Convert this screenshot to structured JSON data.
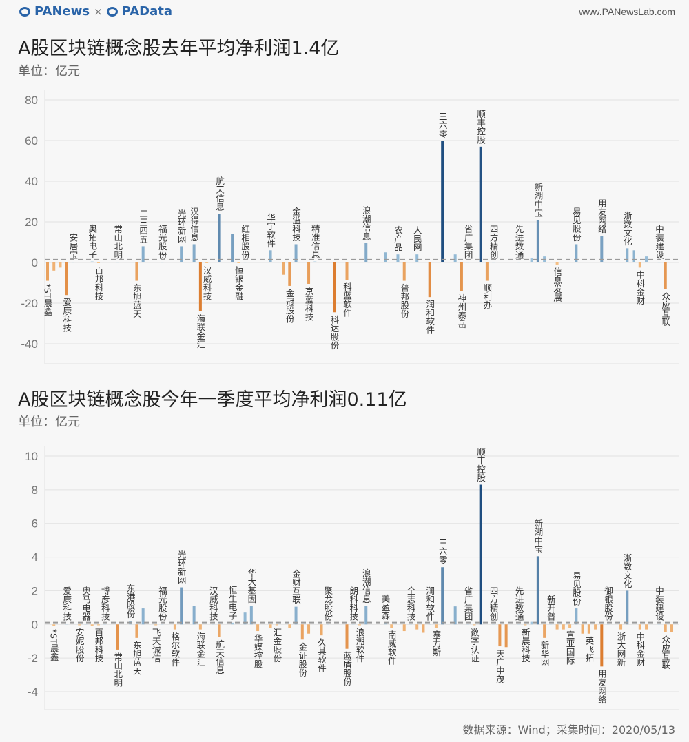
{
  "header": {
    "logo_left": "PANews",
    "logo_sep": "×",
    "logo_right": "PAData",
    "site": "www.PANewsLab.com"
  },
  "footer": {
    "source": "数据来源：Wind；采集时间：2020/05/13"
  },
  "colors": {
    "pos_light": "#a9cde4",
    "pos_dark": "#1f4e80",
    "neg_light": "#f6c68e",
    "neg_dark": "#dc7d30",
    "avg_line": "#9a9a9a",
    "grid": "#e2e2e2"
  },
  "chart_data": [
    {
      "type": "bar",
      "title": "A股区块链概念股去年平均净利润1.4亿",
      "unit": "单位：亿元",
      "average": 1.4,
      "ylim": [
        -50,
        85
      ],
      "yticks": [
        80,
        60,
        40,
        20,
        0,
        -20,
        -40
      ],
      "grid": true,
      "bars": [
        [
          "*ST晨鑫",
          -9
        ],
        [
          "",
          -4
        ],
        [
          "",
          -2.5
        ],
        [
          "爱康科技",
          -16
        ],
        [
          "安居宝",
          0.3
        ],
        [
          "",
          null
        ],
        [
          "",
          null
        ],
        [
          "奥拓电子",
          0.5
        ],
        [
          "百邦科技",
          -0.3
        ],
        [
          "",
          null
        ],
        [
          "",
          null
        ],
        [
          "常山北明",
          0.3
        ],
        [
          "",
          null
        ],
        [
          "",
          null
        ],
        [
          "东旭蓝天",
          -9
        ],
        [
          "二三四五",
          8
        ],
        [
          "",
          null
        ],
        [
          "",
          null
        ],
        [
          "福光股份",
          0.3
        ],
        [
          "",
          null
        ],
        [
          "",
          null
        ],
        [
          "光环新网",
          8
        ],
        [
          "",
          null
        ],
        [
          "汉得信息",
          9
        ],
        [
          "海联金汇",
          -24
        ],
        [
          "汉威科技",
          -0.3
        ],
        [
          "",
          null
        ],
        [
          "航天信息",
          24
        ],
        [
          "",
          null
        ],
        [
          "",
          14
        ],
        [
          "恒银金融",
          -0.3
        ],
        [
          "红相股份",
          0.3
        ],
        [
          "",
          null
        ],
        [
          "",
          null
        ],
        [
          "",
          null
        ],
        [
          "华宇软件",
          6
        ],
        [
          "",
          null
        ],
        [
          "",
          -6
        ],
        [
          "金冠股份",
          -11.5
        ],
        [
          "金溢科技",
          9
        ],
        [
          "",
          null
        ],
        [
          "京蓝科技",
          -10.5
        ],
        [
          "精准信息",
          0.5
        ],
        [
          "",
          null
        ],
        [
          "",
          null
        ],
        [
          "科达股份",
          -24.5
        ],
        [
          "",
          null
        ],
        [
          "科蓝软件",
          -8.5
        ],
        [
          "",
          null
        ],
        [
          "",
          null
        ],
        [
          "浪潮信息",
          9.5
        ],
        [
          "",
          null
        ],
        [
          "",
          null
        ],
        [
          "",
          5
        ],
        [
          "",
          null
        ],
        [
          "农产品",
          4
        ],
        [
          "普邦股份",
          -9
        ],
        [
          "",
          null
        ],
        [
          "人民网",
          4
        ],
        [
          "",
          null
        ],
        [
          "润和软件",
          -17
        ],
        [
          "",
          null
        ],
        [
          "三六零",
          60
        ],
        [
          "",
          null
        ],
        [
          "",
          4
        ],
        [
          "神州泰岳",
          -14
        ],
        [
          "省广集团",
          0.3
        ],
        [
          "",
          null
        ],
        [
          "顺丰控股",
          57
        ],
        [
          "顺利办",
          -9
        ],
        [
          "四方精创",
          0.3
        ],
        [
          "",
          null
        ],
        [
          "",
          null
        ],
        [
          "",
          null
        ],
        [
          "先进数通",
          0.3
        ],
        [
          "",
          null
        ],
        [
          "",
          2
        ],
        [
          "新湖中宝",
          21
        ],
        [
          "",
          3
        ],
        [
          "",
          null
        ],
        [
          "信息发展",
          -1
        ],
        [
          "",
          null
        ],
        [
          "",
          null
        ],
        [
          "易见股份",
          9
        ],
        [
          "",
          null
        ],
        [
          "",
          null
        ],
        [
          "",
          null
        ],
        [
          "用友网络",
          13
        ],
        [
          "",
          null
        ],
        [
          "",
          null
        ],
        [
          "",
          null
        ],
        [
          "浙数文化",
          7
        ],
        [
          "",
          6
        ],
        [
          "中科金财",
          -2.5
        ],
        [
          "",
          3
        ],
        [
          "",
          null
        ],
        [
          "中装建设",
          0.3
        ],
        [
          "众应互联",
          -13
        ],
        [
          "",
          null
        ]
      ]
    },
    {
      "type": "bar",
      "title": "A股区块链概念股今年一季度平均净利润0.11亿",
      "unit": "单位：亿元",
      "average": 0.11,
      "ylim": [
        -5,
        10.5
      ],
      "yticks": [
        10,
        8,
        6,
        4,
        2,
        0,
        -2,
        -4
      ],
      "grid": true,
      "bars": [
        [
          "",
          null
        ],
        [
          "*ST晨鑫",
          -0.1
        ],
        [
          "",
          null
        ],
        [
          "爱康科技",
          0.05
        ],
        [
          "",
          null
        ],
        [
          "安妮股份",
          -0.05
        ],
        [
          "奥马电器",
          0.05
        ],
        [
          "",
          -0.1
        ],
        [
          "百邦科技",
          -0.05
        ],
        [
          "博彦科技",
          0.05
        ],
        [
          "",
          null
        ],
        [
          "常山北明",
          -1.5
        ],
        [
          "",
          null
        ],
        [
          "东港股份",
          0.2
        ],
        [
          "东旭蓝天",
          -0.8
        ],
        [
          "",
          0.95
        ],
        [
          "",
          null
        ],
        [
          "飞天诚信",
          -0.05
        ],
        [
          "福光股份",
          0.05
        ],
        [
          "",
          null
        ],
        [
          "格尔软件",
          -0.3
        ],
        [
          "光环新网",
          2.2
        ],
        [
          "",
          null
        ],
        [
          "",
          1.1
        ],
        [
          "海联金汇",
          -0.3
        ],
        [
          "",
          null
        ],
        [
          "汉威科技",
          0.05
        ],
        [
          "航天信息",
          -0.75
        ],
        [
          "",
          null
        ],
        [
          "恒生电子",
          0.1
        ],
        [
          "",
          null
        ],
        [
          "",
          0.7
        ],
        [
          "华大基因",
          1.1
        ],
        [
          "华媒控股",
          -0.4
        ],
        [
          "",
          null
        ],
        [
          "",
          -0.2
        ],
        [
          "汇金股份",
          -0.05
        ],
        [
          "",
          null
        ],
        [
          "",
          -0.2
        ],
        [
          "金财互联",
          1.05
        ],
        [
          "金证股份",
          -0.9
        ],
        [
          "",
          -0.55
        ],
        [
          "",
          null
        ],
        [
          "久其软件",
          -0.65
        ],
        [
          "聚龙股份",
          0.05
        ],
        [
          "",
          null
        ],
        [
          "",
          null
        ],
        [
          "蓝盾股份",
          -1.45
        ],
        [
          "朗科科技",
          0.05
        ],
        [
          "浪潮软件",
          -0.05
        ],
        [
          "浪潮信息",
          1.1
        ],
        [
          "",
          null
        ],
        [
          "",
          null
        ],
        [
          "美盈森",
          0.1
        ],
        [
          "南威软件",
          -0.2
        ],
        [
          "",
          null
        ],
        [
          "",
          -0.4
        ],
        [
          "全志科技",
          0.05
        ],
        [
          "",
          -0.3
        ],
        [
          "",
          -0.5
        ],
        [
          "润和软件",
          0.05
        ],
        [
          "塞力斯",
          -0.2
        ],
        [
          "三六零",
          3.4
        ],
        [
          "",
          null
        ],
        [
          "",
          1.07
        ],
        [
          "",
          null
        ],
        [
          "省广集团",
          0.05
        ],
        [
          "数字认证",
          -0.05
        ],
        [
          "顺丰控股",
          8.3
        ],
        [
          "",
          null
        ],
        [
          "四方精创",
          0.05
        ],
        [
          "天广中茂",
          -1.3
        ],
        [
          "",
          -1.35
        ],
        [
          "",
          null
        ],
        [
          "先进数通",
          0.05
        ],
        [
          "新晨科技",
          -0.05
        ],
        [
          "",
          0.15
        ],
        [
          "新湖中宝",
          4.05
        ],
        [
          "新华网",
          -0.8
        ],
        [
          "新开普",
          0.05
        ],
        [
          "",
          -0.3
        ],
        [
          "",
          -0.3
        ],
        [
          "宣亚国际",
          -0.2
        ],
        [
          "易见股份",
          0.95
        ],
        [
          "",
          -0.55
        ],
        [
          "英飞拓",
          -0.55
        ],
        [
          "",
          -0.3
        ],
        [
          "用友网络",
          -2.5
        ],
        [
          "御银股份",
          0.05
        ],
        [
          "",
          null
        ],
        [
          "浙大网新",
          -0.3
        ],
        [
          "浙数文化",
          2.0
        ],
        [
          "",
          null
        ],
        [
          "中科金财",
          -0.3
        ],
        [
          "",
          -0.3
        ],
        [
          "",
          null
        ],
        [
          "中装建设",
          0.05
        ],
        [
          "众应互联",
          -0.45
        ],
        [
          "",
          -0.45
        ]
      ]
    }
  ]
}
